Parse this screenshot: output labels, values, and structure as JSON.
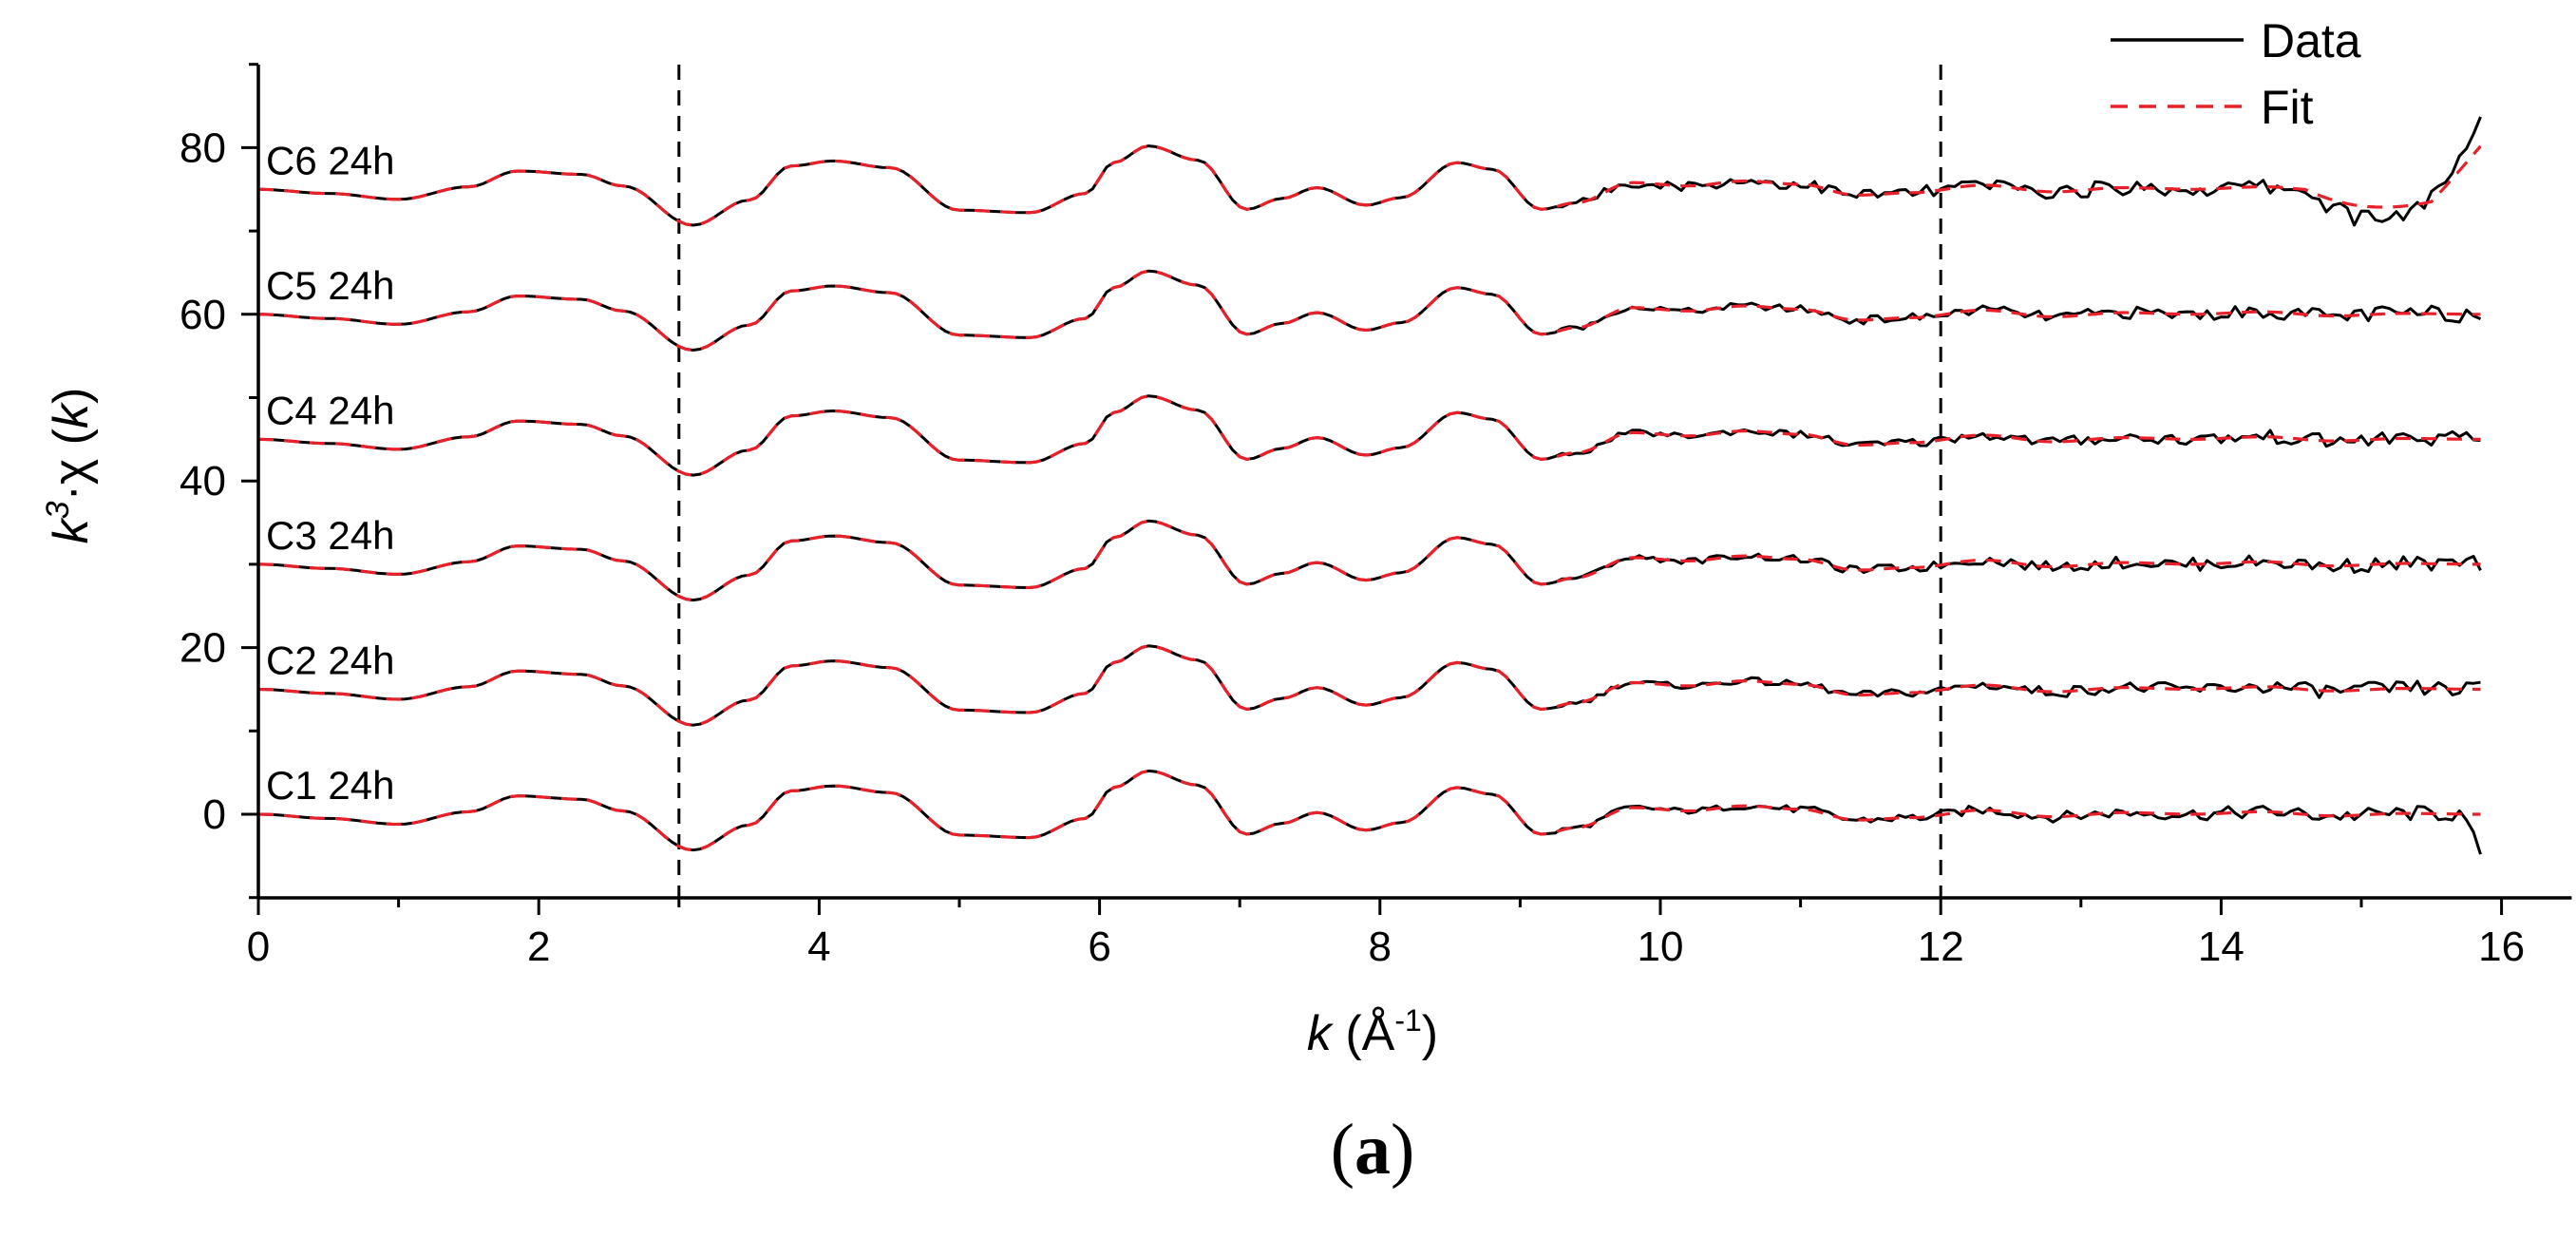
{
  "panel_label": {
    "open": "(",
    "letter": "a",
    "close": ")"
  },
  "chart_data": {
    "type": "line",
    "xlabel": {
      "var": "k",
      "unit_open": " (Å",
      "unit_sup": "-1",
      "unit_close": ")"
    },
    "ylabel": {
      "k": "k",
      "sup": "3",
      "mid": "·χ (",
      "k2": "k",
      "close": ")"
    },
    "xlim": [
      0,
      16.5
    ],
    "ylim": [
      -10,
      90
    ],
    "xticks": [
      0,
      2,
      4,
      6,
      8,
      10,
      12,
      14,
      16
    ],
    "yticks": [
      0,
      20,
      40,
      60,
      80
    ],
    "vlines": [
      3,
      12
    ],
    "legend": {
      "position": "top-right",
      "items": [
        {
          "label": "Data",
          "style": "solid",
          "color": "#000000"
        },
        {
          "label": "Fit",
          "style": "dashed",
          "color": "#e8202a"
        }
      ]
    },
    "series": [
      {
        "label": "C1 24h",
        "offset": 0
      },
      {
        "label": "C2 24h",
        "offset": 15
      },
      {
        "label": "C3 24h",
        "offset": 30
      },
      {
        "label": "C4 24h",
        "offset": 45
      },
      {
        "label": "C5 24h",
        "offset": 60
      },
      {
        "label": "C6 24h",
        "offset": 75
      }
    ],
    "base_curve": {
      "x": [
        0,
        0.5,
        1.0,
        1.5,
        1.85,
        2.3,
        2.6,
        3.1,
        3.5,
        3.8,
        4.1,
        4.5,
        5.0,
        5.5,
        5.9,
        6.1,
        6.35,
        6.7,
        7.05,
        7.3,
        7.55,
        7.9,
        8.15,
        8.55,
        8.8,
        9.15,
        9.4,
        9.8,
        10.2,
        10.6,
        11.0,
        11.4,
        11.8,
        12.3,
        12.8,
        13.3,
        13.8,
        14.3,
        14.8,
        15.3,
        15.85
      ],
      "y": [
        0,
        -0.5,
        -1.2,
        0.3,
        2.2,
        1.8,
        0.4,
        -4.3,
        -1.3,
        2.8,
        3.4,
        2.6,
        -2.5,
        -2.8,
        -0.5,
        3.2,
        5.2,
        3.5,
        -2.4,
        -1.1,
        0.2,
        -1.9,
        -1.0,
        3.2,
        2.4,
        -2.4,
        -1.6,
        0.8,
        0.4,
        1.0,
        0.6,
        -0.7,
        -0.4,
        0.5,
        -0.3,
        0.2,
        0.0,
        0.3,
        -0.2,
        0.1,
        0.0
      ]
    }
  }
}
